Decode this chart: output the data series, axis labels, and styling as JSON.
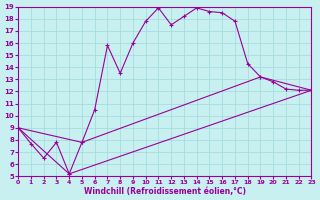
{
  "xlabel": "Windchill (Refroidissement éolien,°C)",
  "bg_color": "#c8f0f0",
  "grid_color": "#a0d8d8",
  "line_color": "#990099",
  "xlim": [
    0,
    23
  ],
  "ylim": [
    5,
    19
  ],
  "xticks": [
    0,
    1,
    2,
    3,
    4,
    5,
    6,
    7,
    8,
    9,
    10,
    11,
    12,
    13,
    14,
    15,
    16,
    17,
    18,
    19,
    20,
    21,
    22,
    23
  ],
  "yticks": [
    5,
    6,
    7,
    8,
    9,
    10,
    11,
    12,
    13,
    14,
    15,
    16,
    17,
    18,
    19
  ],
  "series1": [
    [
      0,
      9.0
    ],
    [
      1,
      7.7
    ],
    [
      2,
      6.5
    ],
    [
      3,
      7.8
    ],
    [
      4,
      5.2
    ],
    [
      5,
      7.8
    ],
    [
      6,
      10.5
    ],
    [
      7,
      15.8
    ],
    [
      8,
      13.5
    ],
    [
      9,
      16.0
    ],
    [
      10,
      17.8
    ],
    [
      11,
      18.9
    ],
    [
      12,
      17.5
    ],
    [
      13,
      18.2
    ],
    [
      14,
      18.9
    ],
    [
      15,
      18.6
    ],
    [
      16,
      18.5
    ],
    [
      17,
      17.8
    ],
    [
      18,
      14.3
    ],
    [
      19,
      13.2
    ],
    [
      20,
      12.8
    ],
    [
      21,
      12.2
    ],
    [
      22,
      12.1
    ],
    [
      23,
      12.1
    ]
  ],
  "series2": [
    [
      0,
      9.0
    ],
    [
      5,
      7.8
    ],
    [
      19,
      13.2
    ],
    [
      23,
      12.1
    ]
  ],
  "series3": [
    [
      0,
      9.0
    ],
    [
      4,
      5.2
    ],
    [
      23,
      12.1
    ]
  ]
}
